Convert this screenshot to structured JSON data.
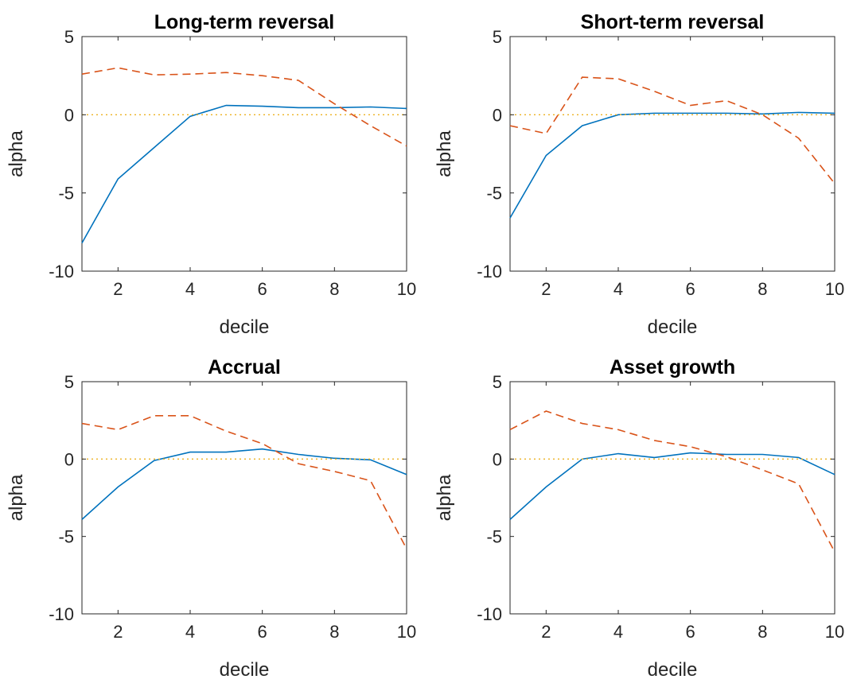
{
  "colors": {
    "series_solid": "#0072BD",
    "series_dashed": "#D95319",
    "zero_line": "#EDB120",
    "axes": "#262626"
  },
  "chart_data": [
    {
      "type": "line",
      "title": "Long-term reversal",
      "xlabel": "decile",
      "ylabel": "alpha",
      "xlim": [
        1,
        10
      ],
      "ylim": [
        -10,
        5
      ],
      "xticks": [
        2,
        4,
        6,
        8,
        10
      ],
      "yticks": [
        5,
        0,
        -5,
        -10
      ],
      "grid": false,
      "x": [
        1,
        2,
        3,
        4,
        5,
        6,
        7,
        8,
        9,
        10
      ],
      "series": [
        {
          "style": "solid",
          "values": [
            -8.2,
            -4.1,
            -2.1,
            -0.1,
            0.6,
            0.55,
            0.45,
            0.45,
            0.5,
            0.4
          ]
        },
        {
          "style": "dashed",
          "values": [
            2.6,
            3.0,
            2.55,
            2.6,
            2.7,
            2.5,
            2.2,
            0.7,
            -0.7,
            -2.0
          ]
        },
        {
          "style": "dotted",
          "values": [
            0,
            0,
            0,
            0,
            0,
            0,
            0,
            0,
            0,
            0
          ]
        }
      ]
    },
    {
      "type": "line",
      "title": "Short-term reversal",
      "xlabel": "decile",
      "ylabel": "alpha",
      "xlim": [
        1,
        10
      ],
      "ylim": [
        -10,
        5
      ],
      "xticks": [
        2,
        4,
        6,
        8,
        10
      ],
      "yticks": [
        5,
        0,
        -5,
        -10
      ],
      "grid": false,
      "x": [
        1,
        2,
        3,
        4,
        5,
        6,
        7,
        8,
        9,
        10
      ],
      "series": [
        {
          "style": "solid",
          "values": [
            -6.6,
            -2.6,
            -0.7,
            0.0,
            0.1,
            0.1,
            0.1,
            0.05,
            0.15,
            0.1
          ]
        },
        {
          "style": "dashed",
          "values": [
            -0.7,
            -1.2,
            2.4,
            2.3,
            1.5,
            0.6,
            0.9,
            0.0,
            -1.5,
            -4.4
          ]
        },
        {
          "style": "dotted",
          "values": [
            0,
            0,
            0,
            0,
            0,
            0,
            0,
            0,
            0,
            0
          ]
        }
      ]
    },
    {
      "type": "line",
      "title": "Accrual",
      "xlabel": "decile",
      "ylabel": "alpha",
      "xlim": [
        1,
        10
      ],
      "ylim": [
        -10,
        5
      ],
      "xticks": [
        2,
        4,
        6,
        8,
        10
      ],
      "yticks": [
        5,
        0,
        -5,
        -10
      ],
      "grid": false,
      "x": [
        1,
        2,
        3,
        4,
        5,
        6,
        7,
        8,
        9,
        10
      ],
      "series": [
        {
          "style": "solid",
          "values": [
            -3.9,
            -1.8,
            -0.1,
            0.45,
            0.45,
            0.65,
            0.3,
            0.05,
            -0.05,
            -1.0
          ]
        },
        {
          "style": "dashed",
          "values": [
            2.3,
            1.9,
            2.8,
            2.8,
            1.8,
            1.0,
            -0.3,
            -0.8,
            -1.4,
            -5.8
          ]
        },
        {
          "style": "dotted",
          "values": [
            0,
            0,
            0,
            0,
            0,
            0,
            0,
            0,
            0,
            0
          ]
        }
      ]
    },
    {
      "type": "line",
      "title": "Asset growth",
      "xlabel": "decile",
      "ylabel": "alpha",
      "xlim": [
        1,
        10
      ],
      "ylim": [
        -10,
        5
      ],
      "xticks": [
        2,
        4,
        6,
        8,
        10
      ],
      "yticks": [
        5,
        0,
        -5,
        -10
      ],
      "grid": false,
      "x": [
        1,
        2,
        3,
        4,
        5,
        6,
        7,
        8,
        9,
        10
      ],
      "series": [
        {
          "style": "solid",
          "values": [
            -3.9,
            -1.8,
            0.0,
            0.35,
            0.1,
            0.4,
            0.3,
            0.3,
            0.1,
            -1.0
          ]
        },
        {
          "style": "dashed",
          "values": [
            1.9,
            3.1,
            2.3,
            1.9,
            1.2,
            0.8,
            0.15,
            -0.7,
            -1.6,
            -6.0
          ]
        },
        {
          "style": "dotted",
          "values": [
            0,
            0,
            0,
            0,
            0,
            0,
            0,
            0,
            0,
            0
          ]
        }
      ]
    }
  ]
}
